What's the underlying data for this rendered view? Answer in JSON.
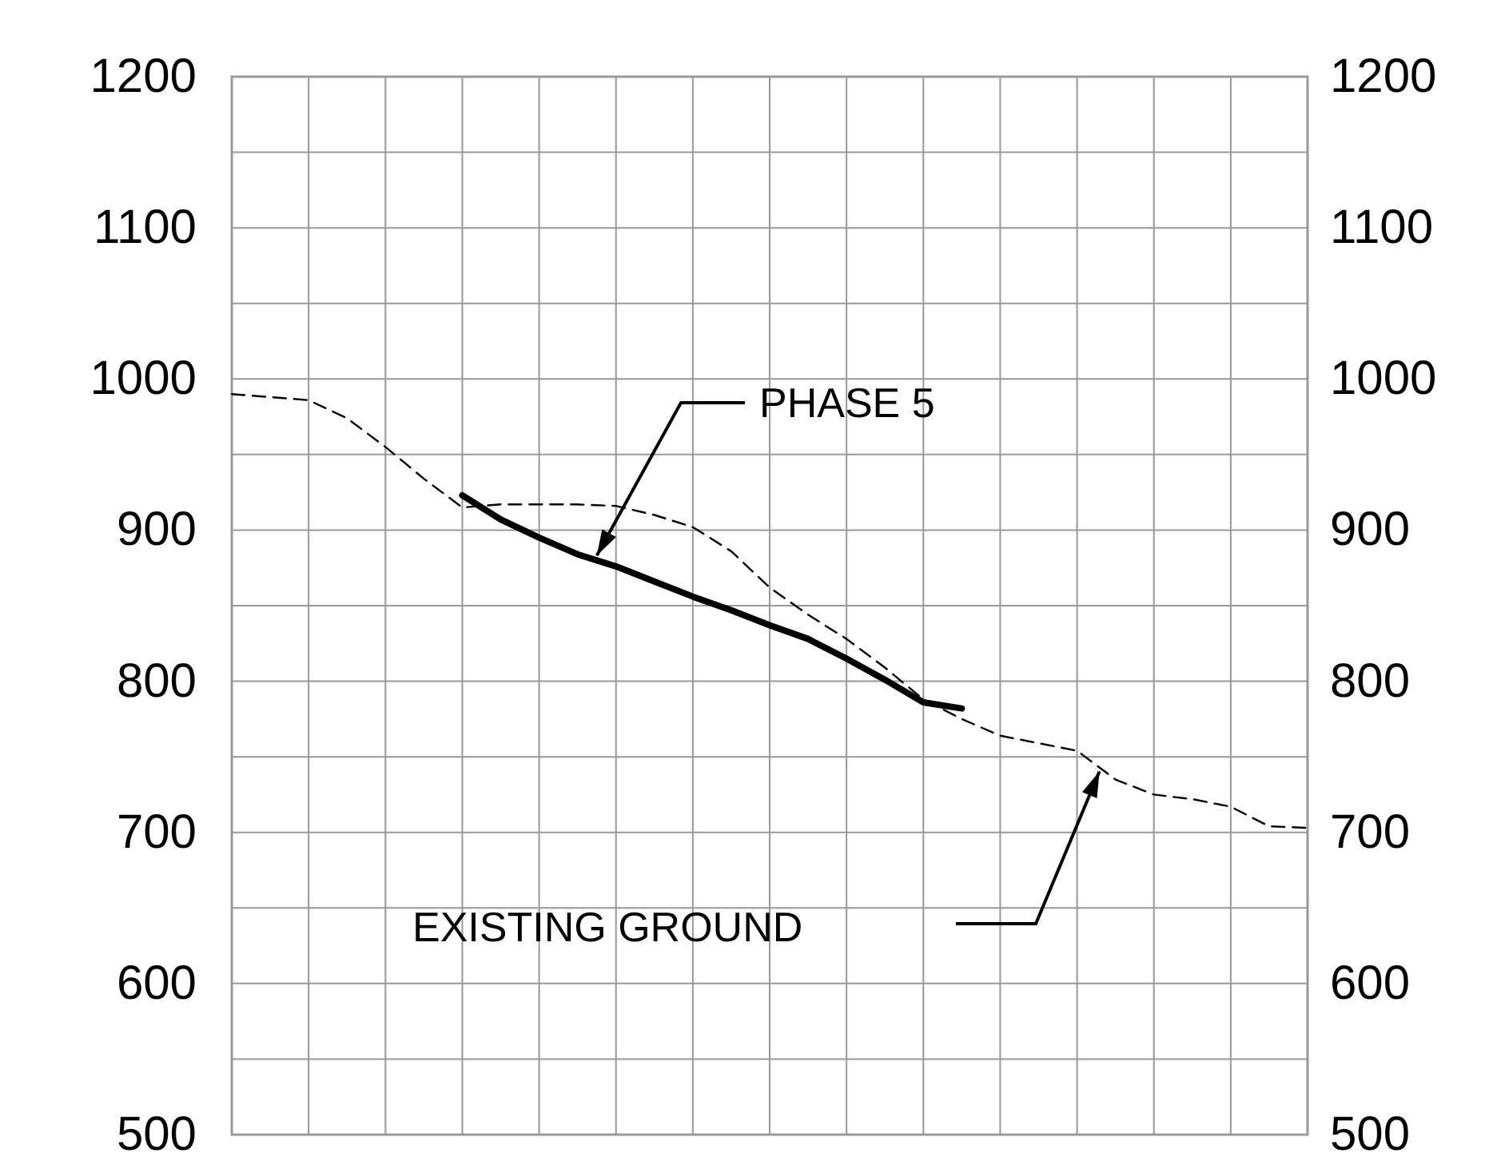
{
  "chart_data": {
    "type": "line",
    "categories": [
      null,
      null,
      null,
      null,
      null,
      null,
      null,
      null,
      null,
      null,
      null,
      null,
      null,
      null,
      null,
      null,
      null,
      null,
      null,
      null,
      null,
      null,
      null,
      null,
      null,
      null,
      null,
      null,
      null
    ],
    "series": [
      {
        "color": "#000000",
        "line_style": "dashed",
        "values": [
          990,
          988,
          986,
          974,
          955,
          934,
          915,
          917,
          917,
          917,
          916,
          910,
          902,
          886,
          862,
          844,
          828,
          809,
          788,
          775,
          764,
          759,
          754,
          735,
          725,
          722,
          717,
          704,
          703
        ]
      },
      {
        "color": "#000000",
        "line_style": "solid",
        "values": [
          null,
          null,
          null,
          null,
          null,
          null,
          923,
          907,
          895,
          884,
          876,
          866,
          856,
          847,
          837,
          828,
          815,
          801,
          786,
          782,
          null,
          null,
          null,
          null,
          null,
          null,
          null,
          null,
          null
        ]
      }
    ],
    "ylim": [
      500,
      1200
    ],
    "yticks": [
      500,
      {
        "value": 550,
        "label": null
      },
      600,
      {
        "value": 650,
        "label": null
      },
      700,
      {
        "value": 750,
        "label": null
      },
      800,
      {
        "value": 850,
        "label": null
      },
      900,
      {
        "value": 950,
        "label": null
      },
      1000,
      {
        "value": 1050,
        "label": null
      },
      1100,
      {
        "value": 1150,
        "label": null
      },
      1200
    ],
    "y2lim": [
      500,
      1200
    ],
    "y2ticks": [
      500,
      600,
      700,
      800,
      900,
      1000,
      1100,
      1200
    ],
    "grid": true,
    "annotations": [
      "PHASE 5",
      "EXISTING GROUND"
    ]
  }
}
